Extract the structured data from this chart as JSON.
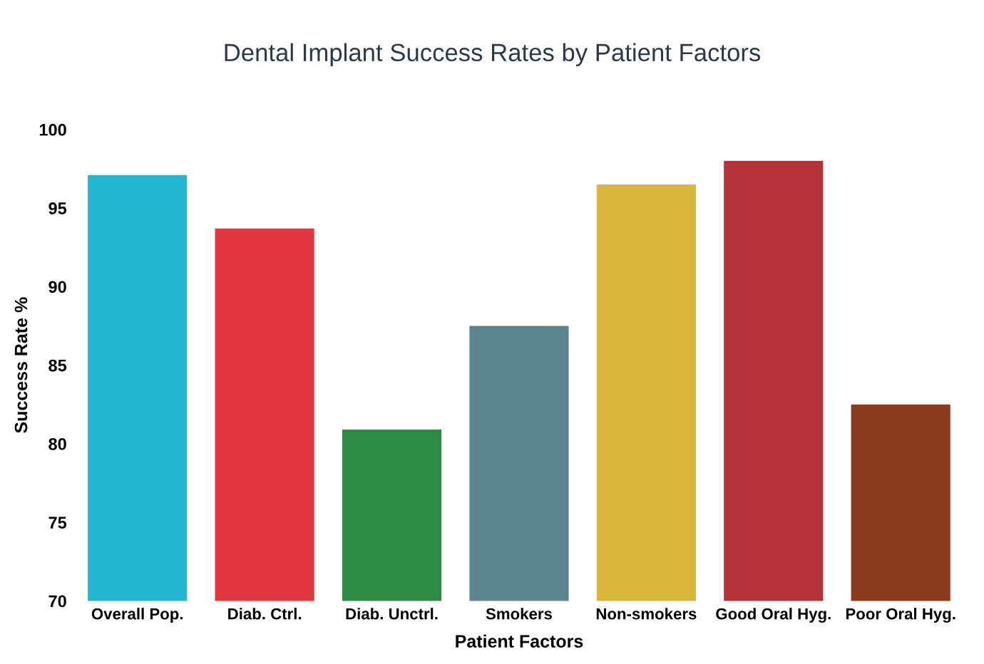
{
  "chart_data": {
    "type": "bar",
    "title": "Dental Implant Success Rates by Patient Factors",
    "xlabel": "Patient Factors",
    "ylabel": "Success Rate %",
    "categories": [
      "Overall Pop.",
      "Diab. Ctrl.",
      "Diab. Unctrl.",
      "Smokers",
      "Non-smokers",
      "Good Oral Hyg.",
      "Poor Oral Hyg."
    ],
    "values": [
      97.1,
      93.7,
      80.9,
      87.5,
      96.5,
      98.0,
      82.5
    ],
    "colors": [
      "#26b5cf",
      "#e0363f",
      "#2d8a45",
      "#5d8590",
      "#d8b63a",
      "#b5323b",
      "#8c3a1d"
    ],
    "ylim": [
      70,
      100
    ],
    "yticks": [
      70,
      75,
      80,
      85,
      90,
      95,
      100
    ],
    "grid": false,
    "legend": false
  }
}
